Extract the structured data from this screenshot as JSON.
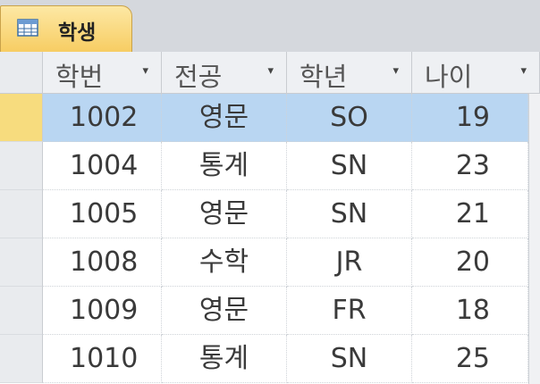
{
  "tab": {
    "label": "학생",
    "icon": "table-icon"
  },
  "columns": [
    {
      "label": "학번",
      "arrow": "▾"
    },
    {
      "label": "전공",
      "arrow": "▾"
    },
    {
      "label": "학년",
      "arrow": "▾"
    },
    {
      "label": "나이",
      "arrow": "▾"
    }
  ],
  "rows": [
    {
      "id": "1002",
      "major": "영문",
      "year": "SO",
      "age": "19"
    },
    {
      "id": "1004",
      "major": "통계",
      "year": "SN",
      "age": "23"
    },
    {
      "id": "1005",
      "major": "영문",
      "year": "SN",
      "age": "21"
    },
    {
      "id": "1008",
      "major": "수학",
      "year": "JR",
      "age": "20"
    },
    {
      "id": "1009",
      "major": "영문",
      "year": "FR",
      "age": "18"
    },
    {
      "id": "1010",
      "major": "통계",
      "year": "SN",
      "age": "25"
    }
  ],
  "selected_row": 0,
  "colors": {
    "tab": "#f7cd63",
    "selection": "#b9d6f2",
    "current_selector": "#f7dc7e"
  }
}
